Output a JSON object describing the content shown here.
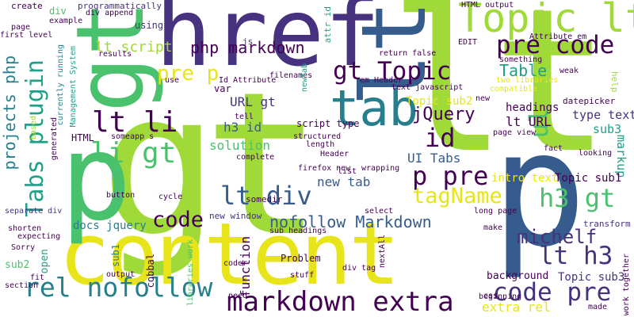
{
  "words": [
    {
      "text": "gt",
      "color": "#a0da39"
    },
    {
      "text": "lt",
      "color": "#a0da39"
    },
    {
      "text": "content",
      "color": "#e7e419"
    },
    {
      "text": "href",
      "color": "#46327e"
    },
    {
      "text": "p",
      "color": "#365c8d"
    },
    {
      "text": "p",
      "color": "#4ac16d"
    },
    {
      "text": "gt",
      "color": "#4ac16d"
    },
    {
      "text": "lt",
      "color": "#365c8d"
    },
    {
      "text": "tab",
      "color": "#277f8e"
    },
    {
      "text": "Topic lt",
      "color": "#a0da39"
    },
    {
      "text": "markdown extra",
      "color": "#440154"
    },
    {
      "text": "rel nofollow",
      "color": "#277f8e"
    },
    {
      "text": "code pre",
      "color": "#46327e"
    },
    {
      "text": "pre code",
      "color": "#440154"
    },
    {
      "text": "gt Topic",
      "color": "#440154"
    },
    {
      "text": "lt li",
      "color": "#440154"
    },
    {
      "text": "li gt",
      "color": "#4ac16d"
    },
    {
      "text": "Tabs plugin",
      "color": "#1fa187"
    },
    {
      "text": "projects php",
      "color": "#277f8e"
    },
    {
      "text": "lt div",
      "color": "#365c8d"
    },
    {
      "text": "p pre",
      "color": "#440154"
    },
    {
      "text": "h3 gt",
      "color": "#4ac16d"
    },
    {
      "text": "lt h3",
      "color": "#46327e"
    },
    {
      "text": "id",
      "color": "#440154"
    },
    {
      "text": "ul",
      "color": "#4ac16d"
    },
    {
      "text": "Table",
      "color": "#1fa187"
    },
    {
      "text": "code",
      "color": "#440154"
    },
    {
      "text": "michelf",
      "color": "#46327e"
    },
    {
      "text": "tagName",
      "color": "#e7e419"
    },
    {
      "text": "nofollow Markdown",
      "color": "#365c8d"
    },
    {
      "text": "php markdown",
      "color": "#440154"
    },
    {
      "text": "pre p",
      "color": "#e7e419"
    },
    {
      "text": "lt script",
      "color": "#a0da39"
    },
    {
      "text": "jQuery",
      "color": "#440154"
    },
    {
      "text": "UI Tabs",
      "color": "#365c8d"
    },
    {
      "text": "lt URL",
      "color": "#440154"
    },
    {
      "text": "h3 id",
      "color": "#365c8d"
    },
    {
      "text": "URL gt",
      "color": "#46327e"
    },
    {
      "text": "solution",
      "color": "#4ac16d"
    },
    {
      "text": "headings",
      "color": "#440154"
    },
    {
      "text": "function",
      "color": "#440154"
    },
    {
      "text": "extra rel",
      "color": "#e7e419"
    },
    {
      "text": "new tab",
      "color": "#365c8d"
    },
    {
      "text": "markup",
      "color": "#1fa187"
    },
    {
      "text": "type text",
      "color": "#46327e"
    },
    {
      "text": "sub3",
      "color": "#1fa187"
    },
    {
      "text": "Topic sub1",
      "color": "#440154"
    },
    {
      "text": "Topic sub3",
      "color": "#46327e"
    },
    {
      "text": "Topic sub2",
      "color": "#e7e419"
    },
    {
      "text": "intro text",
      "color": "#e7e419"
    },
    {
      "text": "docs jquery",
      "color": "#277f8e"
    },
    {
      "text": "background",
      "color": "#440154"
    },
    {
      "text": "script type",
      "color": "#440154"
    },
    {
      "text": "datepicker",
      "color": "#440154"
    },
    {
      "text": "transform",
      "color": "#46327e"
    },
    {
      "text": "HTML",
      "color": "#440154"
    },
    {
      "text": "open",
      "color": "#1fa187"
    },
    {
      "text": "sub2",
      "color": "#4ac16d"
    },
    {
      "text": "div",
      "color": "#4ac16d"
    },
    {
      "text": "var",
      "color": "#440154"
    },
    {
      "text": "Problem",
      "color": "#440154"
    },
    {
      "text": "attr id",
      "color": "#1fa187"
    },
    {
      "text": "cobbal",
      "color": "#440154"
    },
    {
      "text": "sub1",
      "color": "#277f8e"
    },
    {
      "text": "HTML output",
      "color": "#440154"
    },
    {
      "text": "using",
      "color": "#46327e"
    },
    {
      "text": "programmatically",
      "color": "#46327e"
    },
    {
      "text": "create",
      "color": "#440154"
    },
    {
      "text": "example",
      "color": "#440154"
    },
    {
      "text": "first level",
      "color": "#440154"
    },
    {
      "text": "page",
      "color": "#440154"
    },
    {
      "text": "results",
      "color": "#440154"
    },
    {
      "text": "generated",
      "color": "#440154"
    },
    {
      "text": "currently running",
      "color": "#277f8e"
    },
    {
      "text": "Management System",
      "color": "#1fa187"
    },
    {
      "text": "based",
      "color": "#a0da39"
    },
    {
      "text": "shorten",
      "color": "#440154"
    },
    {
      "text": "expecting",
      "color": "#440154"
    },
    {
      "text": "Sorry",
      "color": "#440154"
    },
    {
      "text": "fit",
      "color": "#440154"
    },
    {
      "text": "section",
      "color": "#440154"
    },
    {
      "text": "separate div",
      "color": "#46327e"
    },
    {
      "text": "button",
      "color": "#440154"
    },
    {
      "text": "cycle",
      "color": "#440154"
    },
    {
      "text": "output",
      "color": "#440154"
    },
    {
      "text": "stuff",
      "color": "#440154"
    },
    {
      "text": "need",
      "color": "#440154"
    },
    {
      "text": "coder",
      "color": "#440154"
    },
    {
      "text": "libraries work",
      "color": "#4ac16d"
    },
    {
      "text": "new window",
      "color": "#46327e"
    },
    {
      "text": "somedir",
      "color": "#440154"
    },
    {
      "text": "sub headings",
      "color": "#440154"
    },
    {
      "text": "select",
      "color": "#440154"
    },
    {
      "text": "div tag",
      "color": "#440154"
    },
    {
      "text": "nextAll",
      "color": "#440154"
    },
    {
      "text": "firefox new",
      "color": "#440154"
    },
    {
      "text": "wrapping",
      "color": "#440154"
    },
    {
      "text": "complete",
      "color": "#440154"
    },
    {
      "text": "list",
      "color": "#440154"
    },
    {
      "text": "structured",
      "color": "#440154"
    },
    {
      "text": "length",
      "color": "#440154"
    },
    {
      "text": "Header",
      "color": "#440154"
    },
    {
      "text": "text javascript",
      "color": "#440154"
    },
    {
      "text": "return false",
      "color": "#440154"
    },
    {
      "text": "em Header",
      "color": "#440154"
    },
    {
      "text": "two libraries",
      "color": "#e7e419"
    },
    {
      "text": "compatible",
      "color": "#e7e419"
    },
    {
      "text": "EDIT",
      "color": "#440154"
    },
    {
      "text": "something",
      "color": "#440154"
    },
    {
      "text": "Attribute em",
      "color": "#440154"
    },
    {
      "text": "weak",
      "color": "#440154"
    },
    {
      "text": "help",
      "color": "#a0da39"
    },
    {
      "text": "page view",
      "color": "#440154"
    },
    {
      "text": "fact",
      "color": "#440154"
    },
    {
      "text": "looking",
      "color": "#440154"
    },
    {
      "text": "long page",
      "color": "#440154"
    },
    {
      "text": "beginning",
      "color": "#440154"
    },
    {
      "text": "make",
      "color": "#440154"
    },
    {
      "text": "made",
      "color": "#440154"
    },
    {
      "text": "css",
      "color": "#440154"
    },
    {
      "text": "work together",
      "color": "#440154"
    },
    {
      "text": "filenames",
      "color": "#440154"
    },
    {
      "text": "Id Attribute",
      "color": "#440154"
    },
    {
      "text": "newTab",
      "color": "#1fa187"
    },
    {
      "text": "js",
      "color": "#46327e"
    },
    {
      "text": "tell",
      "color": "#440154"
    },
    {
      "text": "someapp s",
      "color": "#440154"
    },
    {
      "text": "div append",
      "color": "#440154"
    },
    {
      "text": "use",
      "color": "#440154"
    },
    {
      "text": "new",
      "color": "#440154"
    }
  ]
}
